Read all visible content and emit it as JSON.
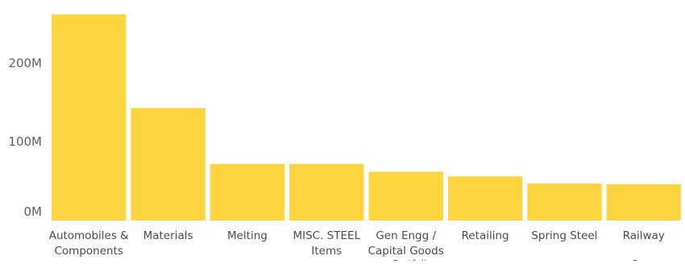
{
  "chart_data": {
    "type": "bar",
    "categories": [
      "Automobiles & Components",
      "Materials",
      "Melting",
      "MISC. STEEL Items",
      "Gen Engg / Capital Goods",
      "Retailing",
      "Spring Steel",
      "Railway"
    ],
    "category_lines": [
      [
        "Automobiles &",
        "Components"
      ],
      [
        "Materials"
      ],
      [
        "Melting"
      ],
      [
        "MISC. STEEL",
        "Items"
      ],
      [
        "Gen Engg /",
        "Capital Goods"
      ],
      [
        "Retailing"
      ],
      [
        "Spring Steel"
      ],
      [
        "Railway"
      ]
    ],
    "values": [
      262000000,
      143000000,
      72000000,
      72000000,
      62000000,
      56000000,
      47000000,
      46000000
    ],
    "ylim": [
      0,
      270000000
    ],
    "yticks": [
      0,
      100000000,
      200000000
    ],
    "ytick_labels": [
      "0M",
      "100M",
      "200M"
    ],
    "title": "",
    "xlabel": "",
    "ylabel": "",
    "legend": "none",
    "grid": false,
    "bar_color": "#fcd440"
  }
}
